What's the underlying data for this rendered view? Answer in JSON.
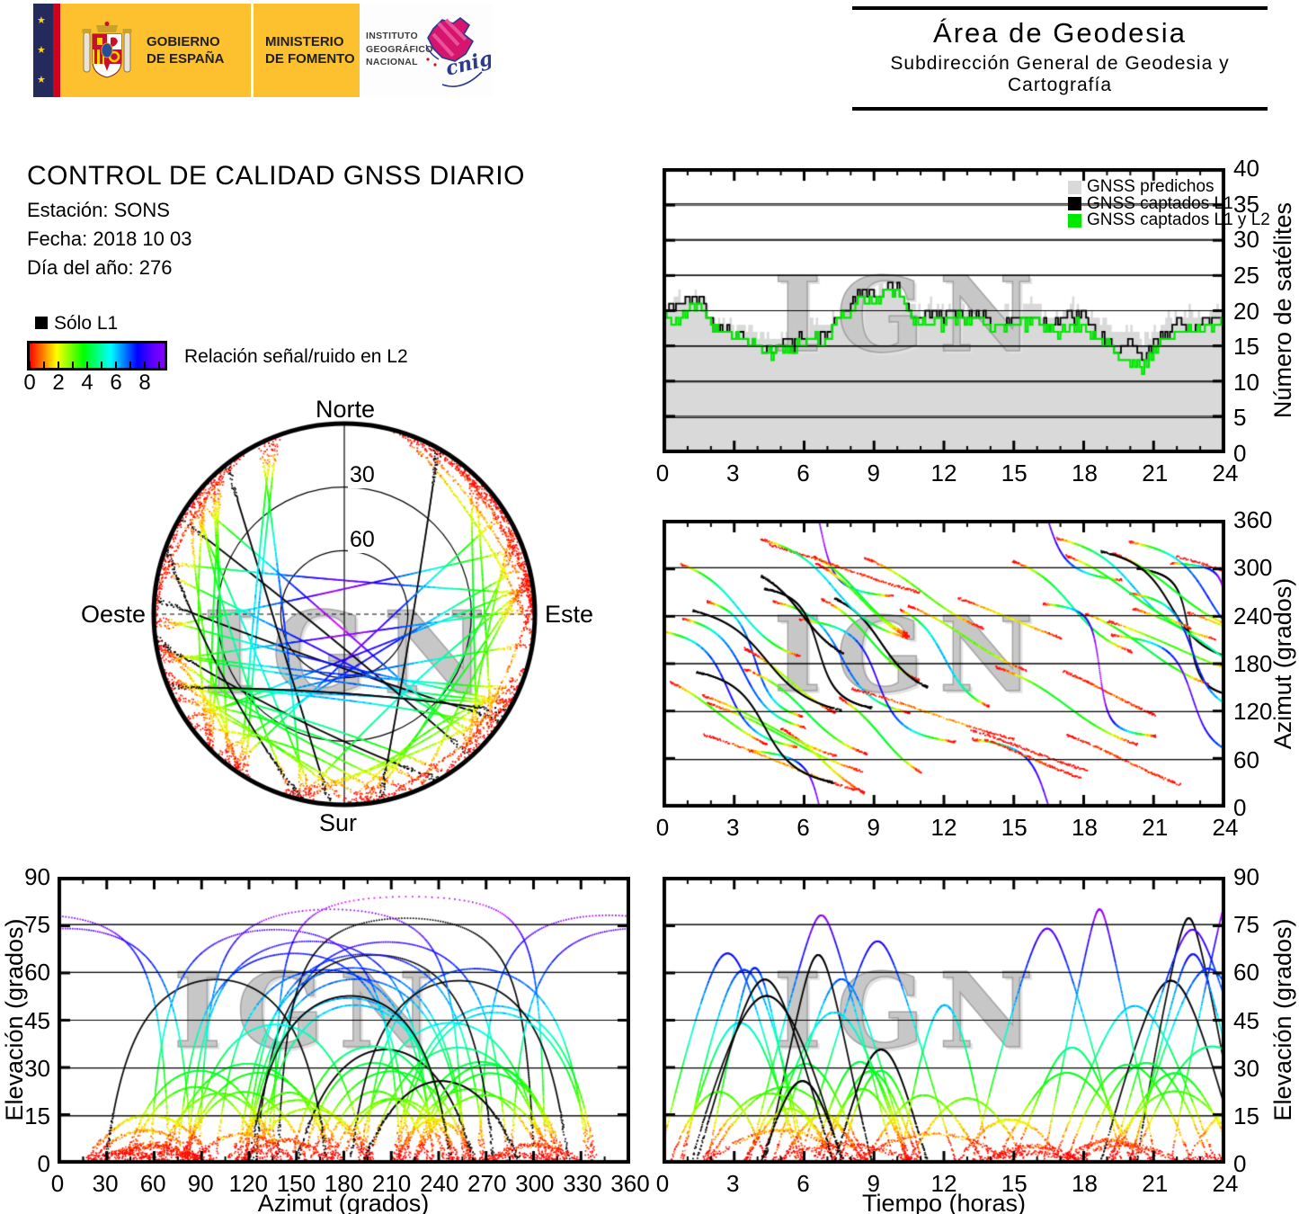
{
  "branding": {
    "gobierno_line1": "GOBIERNO",
    "gobierno_line2": "DE ESPAÑA",
    "ministerio_line1": "MINISTERIO",
    "ministerio_line2": "DE FOMENTO",
    "instituto_line1": "INSTITUTO",
    "instituto_line2": "GEOGRÁFICO",
    "instituto_line3": "NACIONAL",
    "cnig": "cnig"
  },
  "header": {
    "title": "Área de Geodesia",
    "subtitle": "Subdirección General de Geodesia y Cartografía"
  },
  "report": {
    "title": "CONTROL DE CALIDAD GNSS DIARIO",
    "station": "Estación: SONS",
    "date": "Fecha: 2018 10 03",
    "day_of_year": "Día del año: 276"
  },
  "snr_legend": {
    "solo_l1": "Sólo L1",
    "colorbar_label": "Relación señal/ruido en L2",
    "tick_labels": [
      0,
      2,
      4,
      6,
      8
    ],
    "minor_ticks": [
      0,
      1,
      2,
      3,
      4,
      5,
      6,
      7,
      8,
      9
    ],
    "bar_max": 9.375,
    "stops": [
      "#ff0000",
      "#ff8000",
      "#ffff00",
      "#80ff00",
      "#00ff00",
      "#00ff80",
      "#00ffff",
      "#0080ff",
      "#0000ff",
      "#5500ff",
      "#8800ff"
    ]
  },
  "colors": {
    "predicted_gray": "#d9d9d9",
    "captured_black": "#000000",
    "captured_green": "#00e800",
    "grid": "#000000",
    "watermark_gray": "#d4d4d4"
  },
  "chart_data": {
    "watermark": "IGN",
    "charts": [
      {
        "id": "sat_count",
        "type": "area",
        "position": "top-right",
        "xlim": [
          0,
          24
        ],
        "x_major_ticks": [
          0,
          3,
          6,
          9,
          12,
          15,
          18,
          21,
          24
        ],
        "x_minor_step": 1,
        "ylim": [
          0,
          40
        ],
        "y_ticks": [
          0,
          5,
          10,
          15,
          20,
          25,
          30,
          35,
          40
        ],
        "grid_y": [
          5,
          10,
          15,
          20,
          25,
          30,
          35
        ],
        "ylabel_right": "Número de satélites",
        "legend": [
          {
            "label": "GNSS predichos",
            "color": "#d9d9d9"
          },
          {
            "label": "GNSS captados L1",
            "color": "#000000"
          },
          {
            "label": "GNSS captados L1 y L2",
            "color": "#00e800"
          }
        ],
        "sample_step_h": 0.5,
        "series": [
          {
            "name": "GNSS predichos",
            "values": [
              20,
              22,
              21,
              23,
              19,
              19,
              18,
              18,
              17,
              16,
              17,
              17,
              18,
              18,
              18,
              20,
              21,
              23,
              23,
              24,
              24,
              21,
              20,
              21,
              20,
              21,
              20,
              20,
              19,
              20,
              20,
              21,
              21,
              19,
              20,
              21,
              20,
              19,
              18,
              17,
              17,
              16,
              17,
              19,
              19,
              20,
              19,
              20,
              20
            ]
          },
          {
            "name": "GNSS captados L1",
            "values": [
              20,
              21,
              22,
              22,
              18,
              18,
              17,
              16,
              15,
              14,
              16,
              15,
              17,
              16,
              17,
              20,
              21,
              23,
              22,
              23,
              23,
              20,
              19,
              20,
              19,
              20,
              19,
              20,
              18,
              18,
              19,
              19,
              19,
              18,
              19,
              19,
              19,
              17,
              15,
              15,
              15,
              13,
              15,
              17,
              18,
              18,
              18,
              19,
              19
            ]
          },
          {
            "name": "GNSS captados L1 y L2",
            "values": [
              19,
              19,
              20,
              21,
              18,
              17,
              17,
              16,
              15,
              14,
              15,
              14,
              16,
              16,
              16,
              19,
              20,
              22,
              21,
              23,
              23,
              20,
              18,
              19,
              18,
              19,
              19,
              19,
              18,
              17,
              18,
              18,
              19,
              17,
              17,
              18,
              18,
              16,
              15,
              14,
              13,
              12,
              14,
              16,
              17,
              18,
              17,
              18,
              19
            ]
          }
        ],
        "render_noise": {
          "amp": 0.9,
          "seed": 41,
          "step_h": 0.1
        }
      },
      {
        "id": "skyplot",
        "type": "scatter",
        "position": "middle-left",
        "labels": {
          "north": "Norte",
          "south": "Sur",
          "east": "Este",
          "west": "Oeste"
        },
        "elevation_rings": [
          30,
          60
        ],
        "ring_labels": [
          "30",
          "60"
        ]
      },
      {
        "id": "azimuth_time",
        "type": "scatter",
        "position": "middle-right",
        "xlim": [
          0,
          24
        ],
        "x_major_ticks": [
          0,
          3,
          6,
          9,
          12,
          15,
          18,
          21,
          24
        ],
        "x_minor_step": 1,
        "ylim": [
          0,
          360
        ],
        "y_ticks": [
          0,
          60,
          120,
          180,
          240,
          300,
          360
        ],
        "grid_y": [
          60,
          120,
          180,
          240,
          300
        ],
        "ylabel_right": "Azimut (grados)"
      },
      {
        "id": "elev_azimuth",
        "type": "scatter",
        "position": "bottom-left",
        "xlim": [
          0,
          360
        ],
        "x_major_ticks": [
          0,
          30,
          60,
          90,
          120,
          150,
          180,
          210,
          240,
          270,
          300,
          330,
          360
        ],
        "x_minor_step": 15,
        "ylim": [
          0,
          90
        ],
        "y_ticks": [
          0,
          15,
          30,
          45,
          60,
          75,
          90
        ],
        "grid_y": [
          15,
          30,
          45,
          60,
          75
        ],
        "ylabel_left": "Elevación (grados)",
        "xlabel": "Azimut (grados)"
      },
      {
        "id": "elev_time",
        "type": "scatter",
        "position": "bottom-right",
        "xlim": [
          0,
          24
        ],
        "x_major_ticks": [
          0,
          3,
          6,
          9,
          12,
          15,
          18,
          21,
          24
        ],
        "x_minor_step": 1,
        "ylim": [
          0,
          90
        ],
        "y_ticks": [
          0,
          15,
          30,
          45,
          60,
          75,
          90
        ],
        "grid_y": [
          15,
          30,
          45,
          60,
          75
        ],
        "ylabel_right": "Elevación (grados)",
        "xlabel": "Tiempo (horas)"
      }
    ],
    "tracks_model": {
      "count": 58,
      "seed": 978,
      "duration_h": [
        3.5,
        7
      ],
      "black_fraction": 0.11,
      "snr_max": 9.3,
      "hue_max_deg": 305,
      "north_hole": {
        "center_offset": 0.62,
        "radius": 0.36,
        "reject_prob": 0.93
      }
    }
  }
}
